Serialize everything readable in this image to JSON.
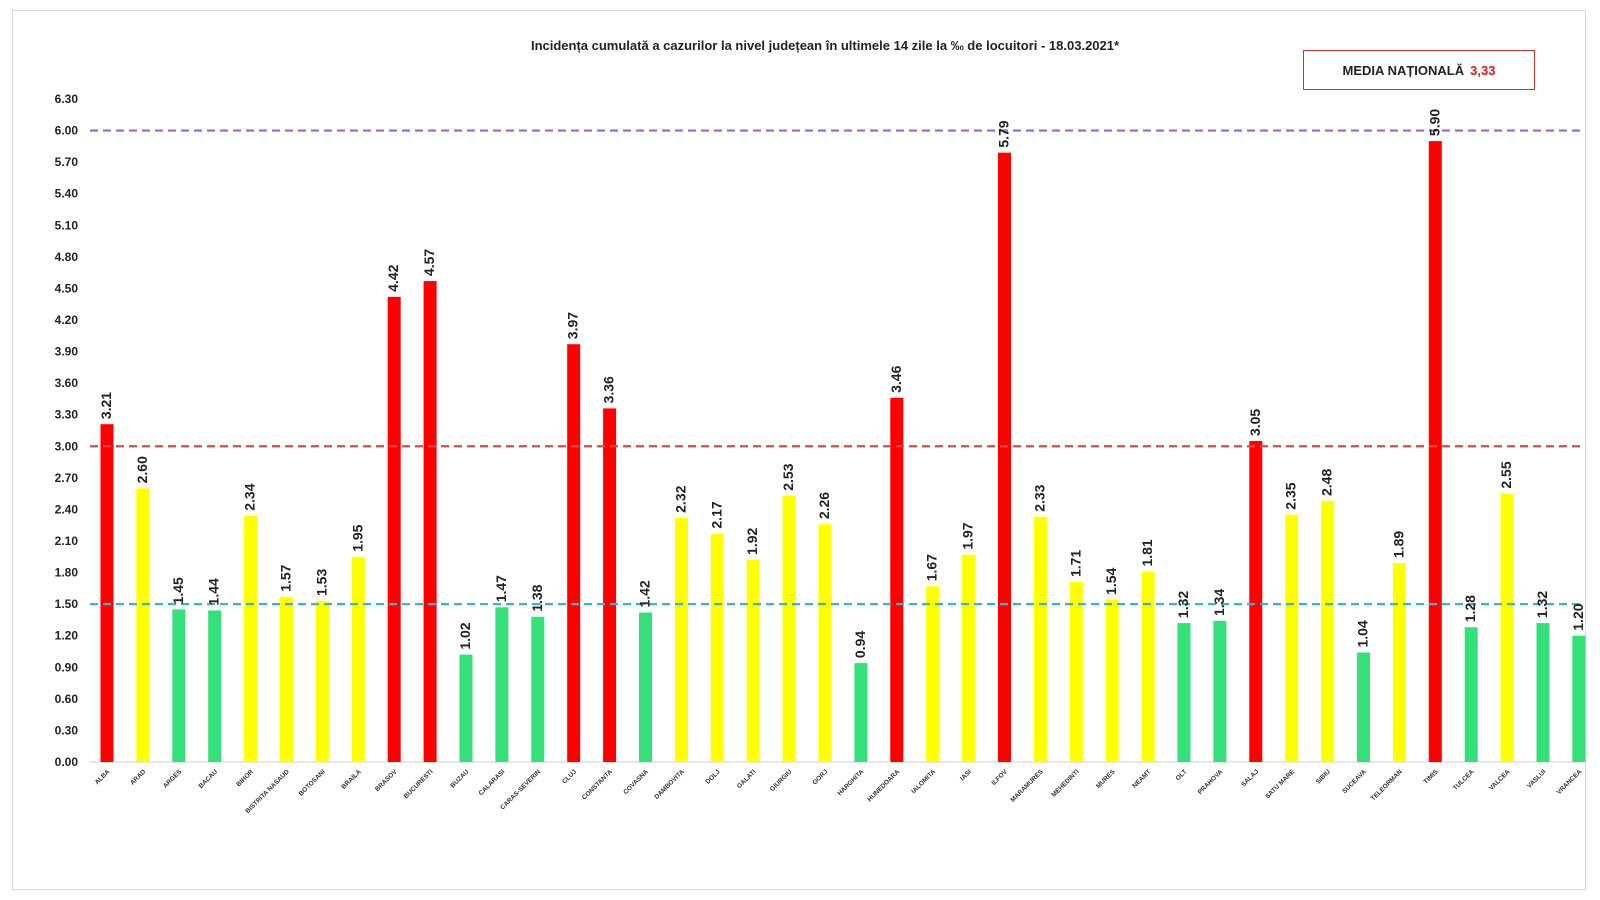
{
  "title": "Incidența cumulată a cazurilor la nivel județean în ultimele 14 zile la ‰ de locuitori - 18.03.2021*",
  "media": {
    "label": "MEDIA NAȚIONALĂ",
    "value": "3,33"
  },
  "colors": {
    "red": "#ff0000",
    "yellow": "#ffff00",
    "green": "#33e07a",
    "purple_line": "#9966cc",
    "red_line": "#d94a4a",
    "blue_line": "#33b5d9"
  },
  "chart_data": {
    "type": "bar",
    "title": "Incidența cumulată a cazurilor la nivel județean în ultimele 14 zile la ‰ de locuitori - 18.03.2021*",
    "xlabel": "",
    "ylabel": "",
    "ylim": [
      0,
      6.3
    ],
    "yticks": [
      "0.00",
      "0.30",
      "0.60",
      "0.90",
      "1.20",
      "1.50",
      "1.80",
      "2.10",
      "2.40",
      "2.70",
      "3.00",
      "3.30",
      "3.60",
      "3.90",
      "4.20",
      "4.50",
      "4.80",
      "5.10",
      "5.40",
      "5.70",
      "6.00",
      "6.30"
    ],
    "grid": false,
    "legend": "none",
    "reference_lines": [
      {
        "value": 6.0,
        "color": "purple"
      },
      {
        "value": 3.0,
        "color": "red"
      },
      {
        "value": 1.5,
        "color": "blue"
      }
    ],
    "categories": [
      "ALBA",
      "ARAD",
      "ARGES",
      "BACAU",
      "BIHOR",
      "BISTRITA NASAUD",
      "BOTOSANI",
      "BRAILA",
      "BRASOV",
      "BUCURESTI",
      "BUZAU",
      "CALARASI",
      "CARAS-SEVERIN",
      "CLUJ",
      "CONSTANTA",
      "COVASNA",
      "DAMBOVITA",
      "DOLJ",
      "GALATI",
      "GIURGIU",
      "GORJ",
      "HARGHITA",
      "HUNEDOARA",
      "IALOMITA",
      "IASI",
      "ILFOV",
      "MARAMURES",
      "MEHEDINTI",
      "MURES",
      "NEAMT",
      "OLT",
      "PRAHOVA",
      "SALAJ",
      "SATU MARE",
      "SIBIU",
      "SUCEAVA",
      "TELEORMAN",
      "TIMIS",
      "TULCEA",
      "VALCEA",
      "VASLUI",
      "VRANCEA"
    ],
    "values": [
      3.21,
      2.6,
      1.45,
      1.44,
      2.34,
      1.57,
      1.53,
      1.95,
      4.42,
      4.57,
      1.02,
      1.47,
      1.38,
      3.97,
      3.36,
      1.42,
      2.32,
      2.17,
      1.92,
      2.53,
      2.26,
      0.94,
      3.46,
      1.67,
      1.97,
      5.79,
      2.33,
      1.71,
      1.54,
      1.81,
      1.32,
      1.34,
      3.05,
      2.35,
      2.48,
      1.04,
      1.89,
      5.9,
      1.28,
      2.55,
      1.32,
      1.2
    ],
    "value_labels": [
      "3.21",
      "2.60",
      "1.45",
      "1.44",
      "2.34",
      "1.57",
      "1.53",
      "1.95",
      "4.42",
      "4.57",
      "1.02",
      "1.47",
      "1.38",
      "3.97",
      "3.36",
      "1.42",
      "2.32",
      "2.17",
      "1.92",
      "2.53",
      "2.26",
      "0.94",
      "3.46",
      "1.67",
      "1.97",
      "5.79",
      "2.33",
      "1.71",
      "1.54",
      "1.81",
      "1.32",
      "1.34",
      "3.05",
      "2.35",
      "2.48",
      "1.04",
      "1.89",
      "5.90",
      "1.28",
      "2.55",
      "1.32",
      "1.20"
    ],
    "bar_colors": [
      "red",
      "yellow",
      "green",
      "green",
      "yellow",
      "yellow",
      "yellow",
      "yellow",
      "red",
      "red",
      "green",
      "green",
      "green",
      "red",
      "red",
      "green",
      "yellow",
      "yellow",
      "yellow",
      "yellow",
      "yellow",
      "green",
      "red",
      "yellow",
      "yellow",
      "red",
      "yellow",
      "yellow",
      "yellow",
      "yellow",
      "green",
      "green",
      "red",
      "yellow",
      "yellow",
      "green",
      "yellow",
      "red",
      "green",
      "yellow",
      "green",
      "green"
    ]
  }
}
